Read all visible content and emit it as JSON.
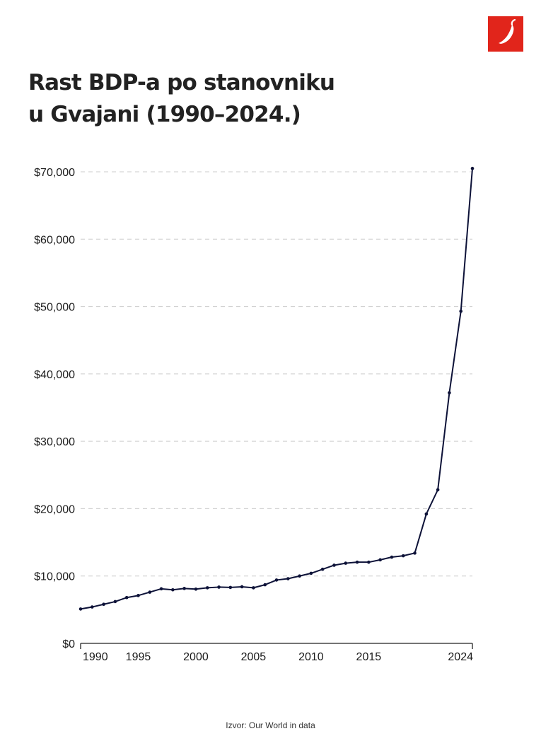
{
  "title": {
    "line1": "Rast BDP-a po stanovniku",
    "line2": "u Gvajani (1990–2024.)"
  },
  "logo": {
    "icon": "chili-pepper-icon",
    "background": "#e1251b"
  },
  "source": "Izvor: Our World in data",
  "colors": {
    "line": "#0d1238",
    "grid": "#cccccc",
    "axis": "#222222"
  },
  "chart_data": {
    "type": "line",
    "title": "Rast BDP-a po stanovniku u Gvajani (1990–2024.)",
    "xlabel": "",
    "ylabel": "",
    "xlim": [
      1990,
      2024
    ],
    "ylim": [
      0,
      70000
    ],
    "grid": "horizontal dashed",
    "legend": "none",
    "x_ticks": [
      {
        "label": "1990",
        "value": 1990
      },
      {
        "label": "1995",
        "value": 1995
      },
      {
        "label": "2000",
        "value": 2000
      },
      {
        "label": "2005",
        "value": 2005
      },
      {
        "label": "2010",
        "value": 2010
      },
      {
        "label": "2015",
        "value": 2015
      },
      {
        "label": "2024",
        "value": 2024
      }
    ],
    "y_ticks": [
      {
        "label": "$0",
        "value": 0
      },
      {
        "label": "$10,000",
        "value": 10000
      },
      {
        "label": "$20,000",
        "value": 20000
      },
      {
        "label": "$30,000",
        "value": 30000
      },
      {
        "label": "$40,000",
        "value": 40000
      },
      {
        "label": "$50,000",
        "value": 50000
      },
      {
        "label": "$60,000",
        "value": 60000
      },
      {
        "label": "$70,000",
        "value": 70000
      }
    ],
    "series": [
      {
        "x": [
          1990,
          1991,
          1992,
          1993,
          1994,
          1995,
          1996,
          1997,
          1998,
          1999,
          2000,
          2001,
          2002,
          2003,
          2004,
          2005,
          2006,
          2007,
          2008,
          2009,
          2010,
          2011,
          2012,
          2013,
          2014,
          2015,
          2016,
          2017,
          2018,
          2019,
          2020,
          2021,
          2022,
          2023,
          2024
        ],
        "values": [
          5100,
          5400,
          5800,
          6200,
          6800,
          7100,
          7600,
          8100,
          7950,
          8150,
          8050,
          8250,
          8350,
          8300,
          8400,
          8250,
          8700,
          9400,
          9600,
          10000,
          10400,
          11000,
          11600,
          11900,
          12050,
          12050,
          12400,
          12800,
          13000,
          13400,
          19200,
          22800,
          37200,
          49300,
          70500
        ]
      }
    ]
  }
}
